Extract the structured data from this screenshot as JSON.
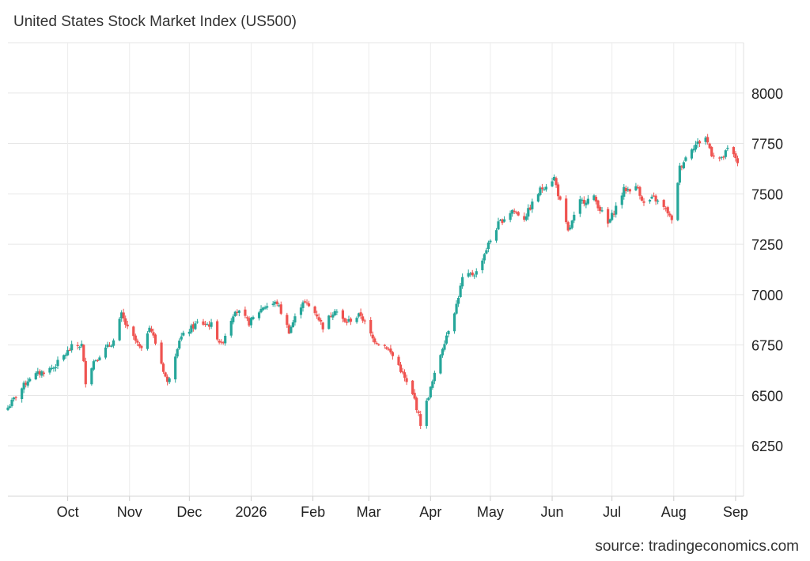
{
  "chart_data": {
    "type": "candlestick",
    "title": "United States Stock Market Index (US500)",
    "source": "source: tradingeconomics.com",
    "xlabel": "",
    "ylabel": "",
    "ylim": [
      6000,
      8250
    ],
    "yticks": [
      6250,
      6500,
      6750,
      7000,
      7250,
      7500,
      7750,
      8000
    ],
    "ytick_labels": [
      "6250",
      "6500",
      "6750",
      "7000",
      "7250",
      "7500",
      "7750",
      "8000"
    ],
    "x_tick_labels": [
      {
        "label": "Oct",
        "date": "2025-10-01"
      },
      {
        "label": "Nov",
        "date": "2025-11-01"
      },
      {
        "label": "Dec",
        "date": "2025-12-01"
      },
      {
        "label": "2026",
        "date": "2026-01-01"
      },
      {
        "label": "Feb",
        "date": "2026-02-01"
      },
      {
        "label": "Mar",
        "date": "2026-03-01"
      },
      {
        "label": "Apr",
        "date": "2026-04-01"
      },
      {
        "label": "May",
        "date": "2026-05-01"
      },
      {
        "label": "Jun",
        "date": "2026-06-01"
      },
      {
        "label": "Jul",
        "date": "2026-07-01"
      },
      {
        "label": "Aug",
        "date": "2026-08-01"
      },
      {
        "label": "Sep",
        "date": "2026-09-01"
      }
    ],
    "xlim": [
      "2025-09-01",
      "2026-09-05"
    ],
    "grid": true,
    "up_color": "#26a69a",
    "down_color": "#ef5350",
    "close_anchors": [
      [
        "2025-09-01",
        6440
      ],
      [
        "2025-09-12",
        6590
      ],
      [
        "2025-09-24",
        6640
      ],
      [
        "2025-10-03",
        6740
      ],
      [
        "2025-10-08",
        6750
      ],
      [
        "2025-10-10",
        6570
      ],
      [
        "2025-10-14",
        6670
      ],
      [
        "2025-10-24",
        6770
      ],
      [
        "2025-10-28",
        6900
      ],
      [
        "2025-10-31",
        6830
      ],
      [
        "2025-11-04",
        6770
      ],
      [
        "2025-11-07",
        6720
      ],
      [
        "2025-11-11",
        6850
      ],
      [
        "2025-11-14",
        6760
      ],
      [
        "2025-11-20",
        6560
      ],
      [
        "2025-11-26",
        6780
      ],
      [
        "2025-12-05",
        6860
      ],
      [
        "2025-12-12",
        6850
      ],
      [
        "2025-12-17",
        6750
      ],
      [
        "2025-12-24",
        6930
      ],
      [
        "2025-12-31",
        6860
      ],
      [
        "2026-01-07",
        6940
      ],
      [
        "2026-01-14",
        6960
      ],
      [
        "2026-01-20",
        6820
      ],
      [
        "2026-01-27",
        6970
      ],
      [
        "2026-02-03",
        6900
      ],
      [
        "2026-02-06",
        6840
      ],
      [
        "2026-02-12",
        6930
      ],
      [
        "2026-02-17",
        6860
      ],
      [
        "2026-02-25",
        6900
      ],
      [
        "2026-03-03",
        6780
      ],
      [
        "2026-03-10",
        6740
      ],
      [
        "2026-03-16",
        6650
      ],
      [
        "2026-03-20",
        6560
      ],
      [
        "2026-03-24",
        6480
      ],
      [
        "2026-03-27",
        6360
      ],
      [
        "2026-03-31",
        6500
      ],
      [
        "2026-04-03",
        6600
      ],
      [
        "2026-04-07",
        6740
      ],
      [
        "2026-04-14",
        6950
      ],
      [
        "2026-04-17",
        7080
      ],
      [
        "2026-04-24",
        7110
      ],
      [
        "2026-04-30",
        7250
      ],
      [
        "2026-05-05",
        7350
      ],
      [
        "2026-05-12",
        7420
      ],
      [
        "2026-05-18",
        7380
      ],
      [
        "2026-05-26",
        7520
      ],
      [
        "2026-06-02",
        7580
      ],
      [
        "2026-06-05",
        7460
      ],
      [
        "2026-06-09",
        7310
      ],
      [
        "2026-06-15",
        7460
      ],
      [
        "2026-06-22",
        7480
      ],
      [
        "2026-06-29",
        7350
      ],
      [
        "2026-07-07",
        7520
      ],
      [
        "2026-07-14",
        7530
      ],
      [
        "2026-07-17",
        7450
      ],
      [
        "2026-07-22",
        7480
      ],
      [
        "2026-07-29",
        7410
      ],
      [
        "2026-07-31",
        7360
      ],
      [
        "2026-08-04",
        7630
      ],
      [
        "2026-08-10",
        7730
      ],
      [
        "2026-08-17",
        7780
      ],
      [
        "2026-08-20",
        7700
      ],
      [
        "2026-08-25",
        7670
      ],
      [
        "2026-08-28",
        7720
      ],
      [
        "2026-09-01",
        7680
      ],
      [
        "2026-09-02",
        7660
      ]
    ]
  }
}
